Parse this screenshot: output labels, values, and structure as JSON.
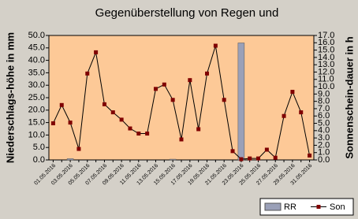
{
  "chart_data": {
    "type": "bar-line",
    "title": "Gegenüberstellung von Regen und",
    "ylabel": "Niederschlags-höhe in mm",
    "y2label": "Sonnenschein-dauer in h",
    "categories": [
      "01.05.2016",
      null,
      "03.05.2016",
      null,
      "05.05.2016",
      null,
      "07.05.2016",
      null,
      "09.05.2016",
      null,
      "11.05.2016",
      null,
      "13.05.2016",
      null,
      "15.05.2016",
      null,
      "17.05.2016",
      null,
      "19.05.2016",
      null,
      "21.05.2016",
      null,
      "23.05.2016",
      null,
      "25.05.2016",
      null,
      "27.05.2016",
      null,
      "29.05.2016",
      null,
      "31.05.2016"
    ],
    "series": [
      {
        "name": "RR",
        "color": "#9aa0b8",
        "type": "bar",
        "values": [
          0,
          0,
          0.5,
          0,
          0,
          0,
          0,
          0,
          0,
          0,
          0,
          0,
          0,
          0,
          0.3,
          0,
          0,
          0,
          0,
          0,
          0,
          0,
          47,
          0,
          0,
          0,
          0,
          0,
          0,
          0,
          0
        ]
      },
      {
        "name": "Son",
        "color": "#800000",
        "type": "line",
        "axis": "y2",
        "values": [
          5.0,
          7.5,
          5.1,
          1.5,
          11.8,
          14.7,
          7.6,
          6.5,
          5.5,
          4.3,
          3.6,
          3.6,
          9.7,
          10.3,
          8.2,
          2.8,
          10.9,
          4.2,
          11.8,
          15.6,
          8.2,
          1.2,
          0.1,
          0.2,
          0.2,
          1.4,
          0.3,
          6.0,
          9.3,
          6.5,
          0.6
        ]
      }
    ],
    "ylim": [
      0,
      50
    ],
    "yticks": [
      {
        "value": 0,
        "label": "0.0"
      },
      {
        "value": 5,
        "label": "5.0"
      },
      {
        "value": 10,
        "label": "10.0"
      },
      {
        "value": 15,
        "label": "15.0"
      },
      {
        "value": 20,
        "label": "20.0"
      },
      {
        "value": 25,
        "label": "25.0"
      },
      {
        "value": 30,
        "label": "30.0"
      },
      {
        "value": 35,
        "label": "35.0"
      },
      {
        "value": 40,
        "label": "40.0"
      },
      {
        "value": 45,
        "label": "45.0"
      },
      {
        "value": 50,
        "label": "50.0"
      }
    ],
    "y2lim": [
      0,
      17
    ],
    "y2ticks": [
      {
        "value": 0,
        "label": "0.0"
      },
      {
        "value": 1,
        "label": "1.0"
      },
      {
        "value": 2,
        "label": "2.0"
      },
      {
        "value": 3,
        "label": "3.0"
      },
      {
        "value": 4,
        "label": "4.0"
      },
      {
        "value": 5,
        "label": "5.0"
      },
      {
        "value": 6,
        "label": "6.0"
      },
      {
        "value": 7,
        "label": "7.0"
      },
      {
        "value": 8,
        "label": "8.0"
      },
      {
        "value": 9,
        "label": "9.0"
      },
      {
        "value": 10,
        "label": "10.0"
      },
      {
        "value": 11,
        "label": "11.0"
      },
      {
        "value": 12,
        "label": "12.0"
      },
      {
        "value": 13,
        "label": "13.0"
      },
      {
        "value": 14,
        "label": "14.0"
      },
      {
        "value": 15,
        "label": "15.0"
      },
      {
        "value": 16,
        "label": "16.0"
      },
      {
        "value": 17,
        "label": "17.0"
      }
    ],
    "legend": "bottom-right",
    "plot_background": "#fdc997"
  }
}
